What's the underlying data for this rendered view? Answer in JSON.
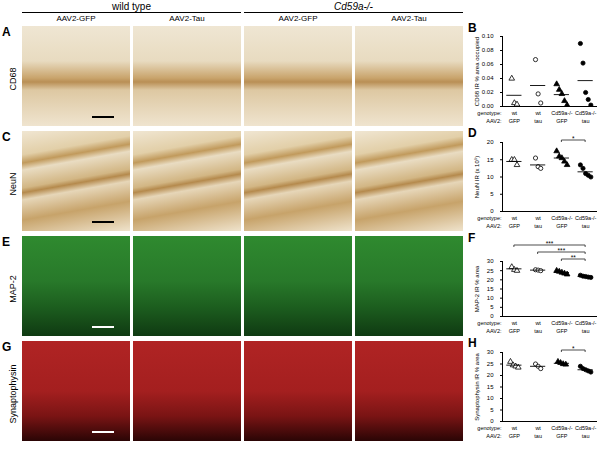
{
  "figure": {
    "header": [
      "wild type",
      "Cd59a-/-"
    ],
    "columns": [
      "AAV2-GFP",
      "AAV2-Tau",
      "AAV2-GFP",
      "AAV2-Tau"
    ],
    "rows": [
      {
        "panel": "A",
        "label": "CD68"
      },
      {
        "panel": "C",
        "label": "NeuN"
      },
      {
        "panel": "E",
        "label": "MAP-2"
      },
      {
        "panel": "G",
        "label": "Synaptophysin"
      }
    ]
  },
  "chart_data": [
    {
      "type": "scatter",
      "panel": "B",
      "ylabel": "CD68 IR % area occupied",
      "color": "#000000",
      "ylim": [
        0,
        0.1
      ],
      "yticks": [
        {
          "value": 0,
          "label": "0.00"
        },
        {
          "value": 0.02,
          "label": "0.02"
        },
        {
          "value": 0.04,
          "label": "0.04"
        },
        {
          "value": 0.06,
          "label": "0.06"
        },
        {
          "value": 0.08,
          "label": "0.08"
        },
        {
          "value": 0.1,
          "label": "0.10"
        }
      ],
      "group_labels": [
        "genotype:",
        "AAV2:"
      ],
      "groups": [
        {
          "genotype": "wt",
          "aav2": "GFP",
          "marker": "triangle-open",
          "values": [
            0.04,
            0.005,
            0.003
          ],
          "mean": 0.016
        },
        {
          "genotype": "wt",
          "aav2": "tau",
          "marker": "circle-open",
          "values": [
            0.067,
            0.018,
            0.005
          ],
          "mean": 0.03
        },
        {
          "genotype": "Cd59a-/-",
          "aav2": "GFP",
          "marker": "triangle",
          "values": [
            0.032,
            0.024,
            0.018,
            0.008,
            0.002
          ],
          "mean": 0.017
        },
        {
          "genotype": "Cd59a-/-",
          "aav2": "tau",
          "marker": "circle",
          "values": [
            0.09,
            0.062,
            0.02,
            0.01,
            0.002
          ],
          "mean": 0.037
        }
      ],
      "significance": []
    },
    {
      "type": "scatter",
      "panel": "D",
      "ylabel": "NeuN IR (x 10⁵)",
      "color": "#000000",
      "ylim": [
        0,
        20
      ],
      "yticks": [
        0,
        5,
        10,
        15,
        20
      ],
      "group_labels": [
        "genotype:",
        "AAV2:"
      ],
      "groups": [
        {
          "genotype": "wt",
          "aav2": "GFP",
          "marker": "triangle-open",
          "values": [
            15,
            15,
            13.5
          ],
          "mean": 14.5
        },
        {
          "genotype": "wt",
          "aav2": "tau",
          "marker": "circle-open",
          "values": [
            15.5,
            13,
            12.5
          ],
          "mean": 13.5
        },
        {
          "genotype": "Cd59a-/-",
          "aav2": "GFP",
          "marker": "triangle",
          "values": [
            17.5,
            16,
            15.5,
            14.5,
            13.5
          ],
          "mean": 15.5
        },
        {
          "genotype": "Cd59a-/-",
          "aav2": "tau",
          "marker": "circle",
          "values": [
            13.5,
            12.5,
            11,
            10.5,
            10
          ],
          "mean": 11.5
        }
      ],
      "significance": [
        {
          "from": 2,
          "to": 3,
          "label": "*"
        }
      ]
    },
    {
      "type": "scatter",
      "panel": "F",
      "ylabel": "MAP-2 IR % area",
      "color": "#000000",
      "ylim": [
        0,
        30
      ],
      "yticks": [
        0,
        5,
        10,
        15,
        20,
        25,
        30
      ],
      "group_labels": [
        "genotype:",
        "AAV2:"
      ],
      "groups": [
        {
          "genotype": "wt",
          "aav2": "GFP",
          "marker": "triangle-open",
          "values": [
            27,
            25.5,
            25
          ],
          "mean": 26
        },
        {
          "genotype": "wt",
          "aav2": "tau",
          "marker": "circle-open",
          "values": [
            25.5,
            25.3,
            25
          ],
          "mean": 25.3
        },
        {
          "genotype": "Cd59a-/-",
          "aav2": "GFP",
          "marker": "triangle",
          "values": [
            25,
            24.5,
            24,
            23.5,
            23
          ],
          "mean": 24
        },
        {
          "genotype": "Cd59a-/-",
          "aav2": "tau",
          "marker": "circle",
          "values": [
            22.5,
            22,
            21.8,
            21.5,
            21.3
          ],
          "mean": 21.8
        }
      ],
      "significance": [
        {
          "from": 2,
          "to": 3,
          "label": "**"
        },
        {
          "from": 1,
          "to": 3,
          "label": "***"
        },
        {
          "from": 0,
          "to": 3,
          "label": "***"
        }
      ]
    },
    {
      "type": "scatter",
      "panel": "H",
      "ylabel": "Synaptophysin IR % area",
      "color": "#000000",
      "ylim": [
        0,
        30
      ],
      "yticks": [
        0,
        5,
        10,
        15,
        20,
        25,
        30
      ],
      "group_labels": [
        "genotype:",
        "AAV2:"
      ],
      "groups": [
        {
          "genotype": "wt",
          "aav2": "GFP",
          "marker": "triangle-open",
          "values": [
            26,
            24.5,
            24,
            23.5
          ],
          "mean": 24.5
        },
        {
          "genotype": "wt",
          "aav2": "tau",
          "marker": "circle-open",
          "values": [
            25,
            24,
            23
          ],
          "mean": 24
        },
        {
          "genotype": "Cd59a-/-",
          "aav2": "GFP",
          "marker": "triangle",
          "values": [
            26,
            25.5,
            25,
            24.8
          ],
          "mean": 25.3
        },
        {
          "genotype": "Cd59a-/-",
          "aav2": "tau",
          "marker": "circle",
          "values": [
            24,
            23,
            22.5,
            22,
            21.5
          ],
          "mean": 22.5
        }
      ],
      "significance": [
        {
          "from": 2,
          "to": 3,
          "label": "*"
        }
      ]
    }
  ]
}
